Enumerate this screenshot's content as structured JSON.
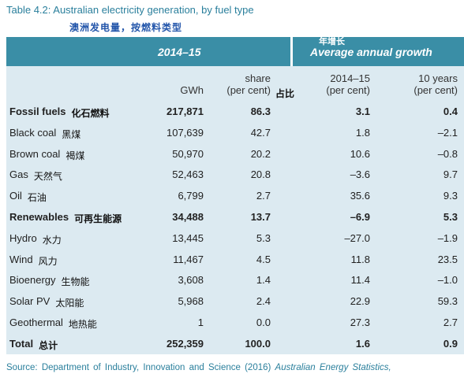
{
  "title": "Table 4.2: Australian electricity generation, by fuel type",
  "subtitle": "澳洲发电量，按燃料类型",
  "header": {
    "period": "2014–15",
    "growth_cn": "年增长",
    "growth": "Average annual growth"
  },
  "columns": [
    {
      "line1": "",
      "line2": "GWh"
    },
    {
      "line1": "share",
      "line2": "(per cent)",
      "note": "占比"
    },
    {
      "line1": "2014–15",
      "line2": "(per cent)"
    },
    {
      "line1": "10 years",
      "line2": "(per cent)"
    }
  ],
  "rows": [
    {
      "name": "Fossil fuels",
      "name_cn": "化石燃料",
      "bold": true,
      "cells": [
        "217,871",
        "86.3",
        "3.1",
        "0.4"
      ]
    },
    {
      "name": "Black coal",
      "name_cn": "黑煤",
      "bold": false,
      "cells": [
        "107,639",
        "42.7",
        "1.8",
        "–2.1"
      ]
    },
    {
      "name": "Brown coal",
      "name_cn": "褐煤",
      "bold": false,
      "cells": [
        "50,970",
        "20.2",
        "10.6",
        "–0.8"
      ]
    },
    {
      "name": "Gas",
      "name_cn": "天然气",
      "bold": false,
      "cells": [
        "52,463",
        "20.8",
        "–3.6",
        "9.7"
      ]
    },
    {
      "name": "Oil",
      "name_cn": "石油",
      "bold": false,
      "cells": [
        "6,799",
        "2.7",
        "35.6",
        "9.3"
      ]
    },
    {
      "name": "Renewables",
      "name_cn": "可再生能源",
      "bold": true,
      "cells": [
        "34,488",
        "13.7",
        "–6.9",
        "5.3"
      ]
    },
    {
      "name": "Hydro",
      "name_cn": "水力",
      "bold": false,
      "cells": [
        "13,445",
        "5.3",
        "–27.0",
        "–1.9"
      ]
    },
    {
      "name": "Wind",
      "name_cn": "风力",
      "bold": false,
      "cells": [
        "11,467",
        "4.5",
        "11.8",
        "23.5"
      ]
    },
    {
      "name": "Bioenergy",
      "name_cn": "生物能",
      "bold": false,
      "cells": [
        "3,608",
        "1.4",
        "11.4",
        "–1.0"
      ]
    },
    {
      "name": "Solar PV",
      "name_cn": "太阳能",
      "bold": false,
      "cells": [
        "5,968",
        "2.4",
        "22.9",
        "59.3"
      ]
    },
    {
      "name": "Geothermal",
      "name_cn": "地热能",
      "bold": false,
      "cells": [
        "1",
        "0.0",
        "27.3",
        "2.7"
      ]
    },
    {
      "name": "Total",
      "name_cn": "总计",
      "bold": true,
      "cells": [
        "252,359",
        "100.0",
        "1.6",
        "0.9"
      ]
    }
  ],
  "source": {
    "text": "Source: Department of Industry, Innovation and Science (2016)",
    "italic": "Australian Energy Statistics,"
  }
}
